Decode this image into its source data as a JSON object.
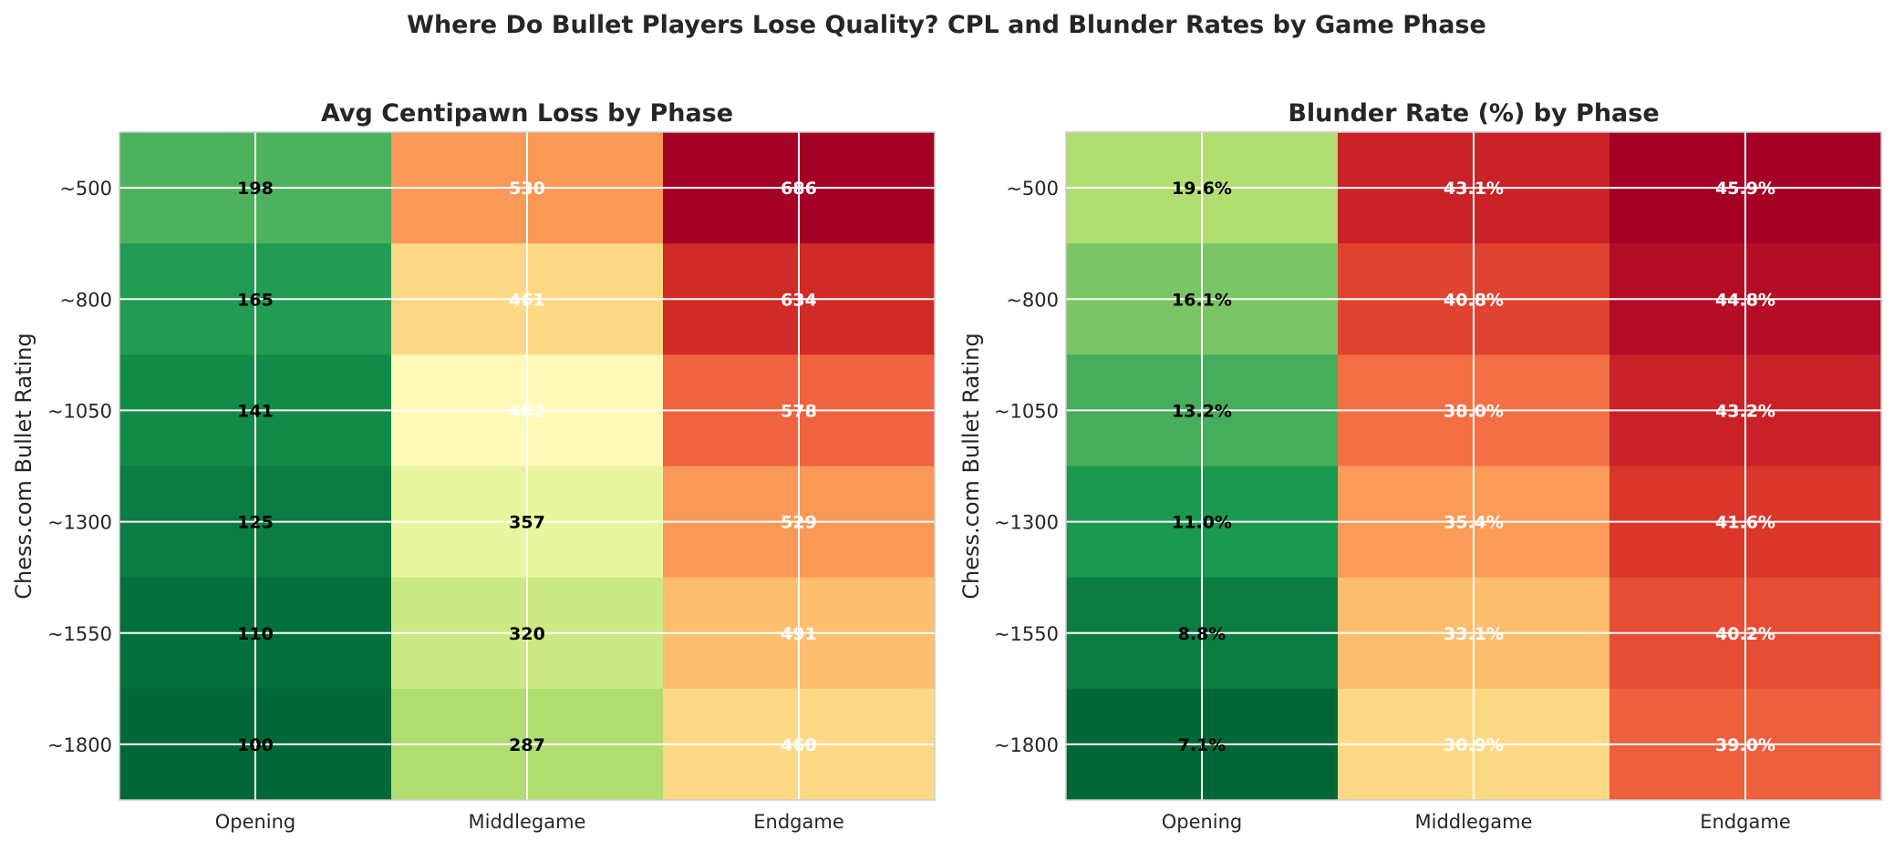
{
  "title": "Where Do Bullet Players Lose Quality? CPL and Blunder Rates by Game Phase",
  "chart_data": [
    {
      "type": "heatmap",
      "title": "Avg Centipawn Loss by Phase",
      "xlabel": "",
      "ylabel": "Chess.com Bullet Rating",
      "x_categories": [
        "Opening",
        "Middlegame",
        "Endgame"
      ],
      "y_categories": [
        "~500",
        "~800",
        "~1050",
        "~1300",
        "~1550",
        "~1800"
      ],
      "values": [
        [
          198,
          530,
          686
        ],
        [
          165,
          461,
          634
        ],
        [
          141,
          402,
          578
        ],
        [
          125,
          357,
          529
        ],
        [
          110,
          320,
          491
        ],
        [
          100,
          287,
          460
        ]
      ],
      "value_labels": [
        [
          "198",
          "530",
          "686"
        ],
        [
          "165",
          "461",
          "634"
        ],
        [
          "141",
          "402",
          "578"
        ],
        [
          "125",
          "357",
          "529"
        ],
        [
          "110",
          "320",
          "491"
        ],
        [
          "100",
          "287",
          "460"
        ]
      ],
      "colormap": "RdYlGn_r",
      "vmin": 100,
      "vmax": 686,
      "grid": true
    },
    {
      "type": "heatmap",
      "title": "Blunder Rate (%) by Phase",
      "xlabel": "",
      "ylabel": "Chess.com Bullet Rating",
      "x_categories": [
        "Opening",
        "Middlegame",
        "Endgame"
      ],
      "y_categories": [
        "~500",
        "~800",
        "~1050",
        "~1300",
        "~1550",
        "~1800"
      ],
      "values": [
        [
          19.6,
          43.1,
          45.9
        ],
        [
          16.1,
          40.8,
          44.8
        ],
        [
          13.2,
          38.0,
          43.2
        ],
        [
          11.0,
          35.4,
          41.6
        ],
        [
          8.8,
          33.1,
          40.2
        ],
        [
          7.1,
          30.9,
          39.0
        ]
      ],
      "value_labels": [
        [
          "19.6%",
          "43.1%",
          "45.9%"
        ],
        [
          "16.1%",
          "40.8%",
          "44.8%"
        ],
        [
          "13.2%",
          "38.0%",
          "43.2%"
        ],
        [
          "11.0%",
          "35.4%",
          "41.6%"
        ],
        [
          "8.8%",
          "33.1%",
          "40.2%"
        ],
        [
          "7.1%",
          "30.9%",
          "39.0%"
        ]
      ],
      "colormap": "RdYlGn_r",
      "vmin": 7.1,
      "vmax": 45.9,
      "grid": true
    }
  ]
}
